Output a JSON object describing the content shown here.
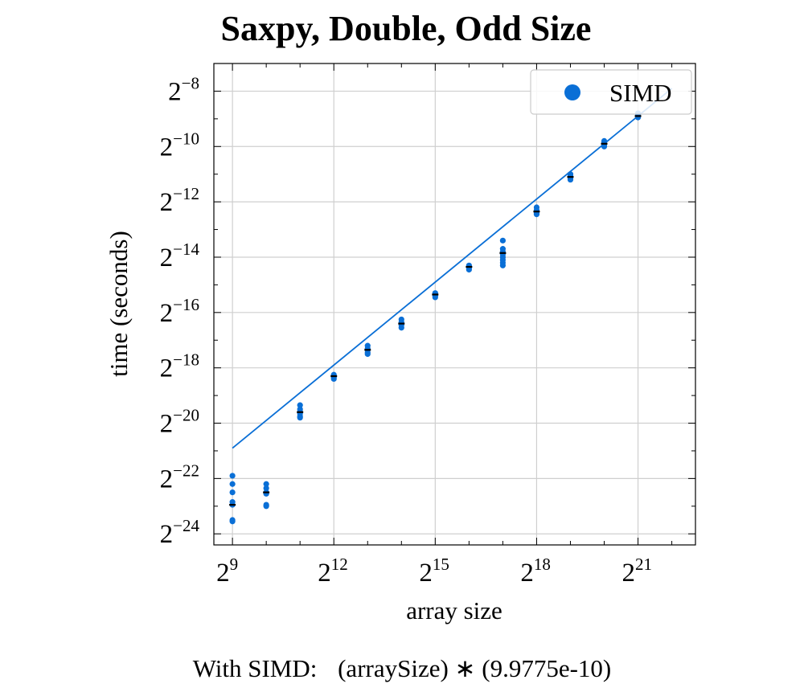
{
  "chart_data": {
    "type": "scatter",
    "title": "Saxpy, Double, Odd Size",
    "xlabel": "array size",
    "ylabel": "time (seconds)",
    "x_scale": "log2",
    "y_scale": "log2",
    "xlim_log2": [
      8.45,
      22.7
    ],
    "ylim_log2": [
      -24.4,
      -7.0
    ],
    "x_ticks": [
      {
        "base": "2",
        "exp": "9",
        "log2": 9
      },
      {
        "base": "2",
        "exp": "12",
        "log2": 12
      },
      {
        "base": "2",
        "exp": "15",
        "log2": 15
      },
      {
        "base": "2",
        "exp": "18",
        "log2": 18
      },
      {
        "base": "2",
        "exp": "21",
        "log2": 21
      }
    ],
    "y_ticks": [
      {
        "base": "2",
        "exp": "−8",
        "log2": -8
      },
      {
        "base": "2",
        "exp": "−10",
        "log2": -10
      },
      {
        "base": "2",
        "exp": "−12",
        "log2": -12
      },
      {
        "base": "2",
        "exp": "−14",
        "log2": -14
      },
      {
        "base": "2",
        "exp": "−16",
        "log2": -16
      },
      {
        "base": "2",
        "exp": "−18",
        "log2": -18
      },
      {
        "base": "2",
        "exp": "−20",
        "log2": -20
      },
      {
        "base": "2",
        "exp": "−22",
        "log2": -22
      },
      {
        "base": "2",
        "exp": "−24",
        "log2": -24
      }
    ],
    "grid": true,
    "legend": {
      "position": "top-right",
      "entries": [
        "SIMD"
      ]
    },
    "series": [
      {
        "name": "SIMD",
        "color": "#0a6fd6",
        "points_log2": [
          {
            "x": 9,
            "y": [
              -21.9,
              -22.2,
              -22.5,
              -22.85,
              -22.95,
              -23.5,
              -23.55
            ]
          },
          {
            "x": 10,
            "y": [
              -22.2,
              -22.35,
              -22.5,
              -22.55,
              -22.95,
              -23.0
            ]
          },
          {
            "x": 11,
            "y": [
              -19.35,
              -19.5,
              -19.6,
              -19.65,
              -19.75,
              -19.8
            ]
          },
          {
            "x": 12,
            "y": [
              -18.25,
              -18.3,
              -18.35,
              -18.4
            ]
          },
          {
            "x": 13,
            "y": [
              -17.2,
              -17.3,
              -17.35,
              -17.45,
              -17.5
            ]
          },
          {
            "x": 14,
            "y": [
              -16.25,
              -16.35,
              -16.45,
              -16.55
            ]
          },
          {
            "x": 15,
            "y": [
              -15.3,
              -15.35,
              -15.4,
              -15.45
            ]
          },
          {
            "x": 16,
            "y": [
              -14.3,
              -14.35,
              -14.4,
              -14.45
            ]
          },
          {
            "x": 17,
            "y": [
              -13.4,
              -13.7,
              -13.8,
              -13.9,
              -14.0,
              -14.1,
              -14.2,
              -14.3
            ]
          },
          {
            "x": 18,
            "y": [
              -12.2,
              -12.3,
              -12.35,
              -12.4,
              -12.45
            ]
          },
          {
            "x": 19,
            "y": [
              -11.0,
              -11.05,
              -11.1,
              -11.15,
              -11.2
            ]
          },
          {
            "x": 20,
            "y": [
              -9.8,
              -9.85,
              -9.9,
              -9.95,
              -10.0
            ]
          },
          {
            "x": 21,
            "y": [
              -8.8,
              -8.85,
              -8.9,
              -8.95
            ]
          }
        ],
        "means_log2": [
          {
            "x": 9,
            "y": -22.95
          },
          {
            "x": 10,
            "y": -22.5
          },
          {
            "x": 11,
            "y": -19.6
          },
          {
            "x": 12,
            "y": -18.3
          },
          {
            "x": 13,
            "y": -17.35
          },
          {
            "x": 14,
            "y": -16.4
          },
          {
            "x": 15,
            "y": -15.35
          },
          {
            "x": 16,
            "y": -14.35
          },
          {
            "x": 17,
            "y": -13.85
          },
          {
            "x": 18,
            "y": -12.35
          },
          {
            "x": 19,
            "y": -11.1
          },
          {
            "x": 20,
            "y": -9.9
          },
          {
            "x": 21,
            "y": -8.9
          }
        ],
        "fit": {
          "coefficient": 9.9775e-10,
          "x_log2_range": [
            9,
            22
          ]
        }
      }
    ]
  },
  "footer": {
    "prefix": "With SIMD:",
    "formula": "(arraySize) ∗ (9.9775e-10)"
  }
}
